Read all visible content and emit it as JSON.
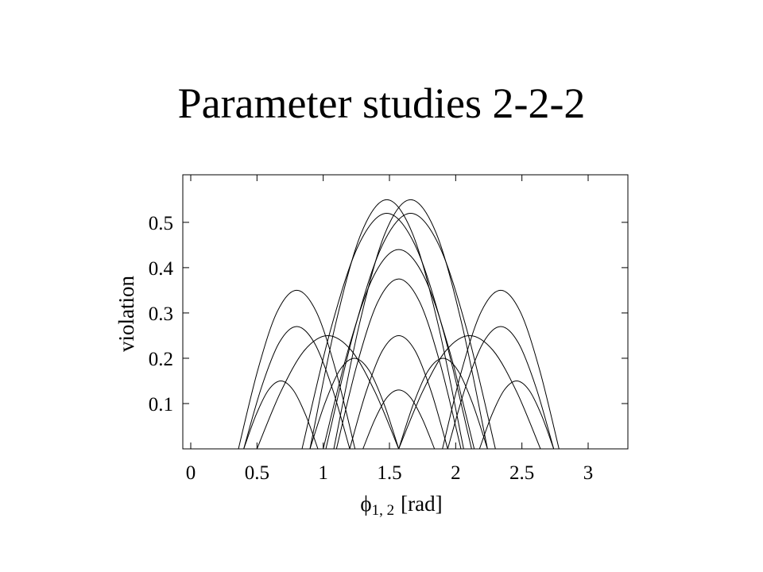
{
  "chart_data": {
    "type": "line",
    "title": "Parameter studies 2-2-2",
    "xlabel": {
      "symbol": "ϕ",
      "subscript": "1, 2",
      "unit": "[rad]"
    },
    "ylabel": "violation",
    "color": "#000000",
    "xlim": [
      -0.06,
      3.3
    ],
    "ylim": [
      0,
      0.605
    ],
    "xticks": [
      0,
      0.5,
      1,
      1.5,
      2,
      2.5,
      3
    ],
    "yticks": [
      0.1,
      0.2,
      0.3,
      0.4,
      0.5
    ],
    "series": [
      {
        "x": [
          0.9,
          1.093,
          1.287,
          1.48,
          1.673,
          1.867,
          2.06
        ],
        "values": [
          0,
          0.275,
          0.476,
          0.55,
          0.476,
          0.275,
          0
        ]
      },
      {
        "x": [
          1.08,
          1.273,
          1.467,
          1.66,
          1.853,
          2.047,
          2.24
        ],
        "values": [
          0,
          0.275,
          0.476,
          0.55,
          0.476,
          0.275,
          0
        ]
      },
      {
        "x": [
          0.84,
          1.053,
          1.267,
          1.48,
          1.693,
          1.907,
          2.12
        ],
        "values": [
          0,
          0.26,
          0.45,
          0.52,
          0.45,
          0.26,
          0
        ]
      },
      {
        "x": [
          1.02,
          1.233,
          1.447,
          1.66,
          1.873,
          2.087,
          2.3
        ],
        "values": [
          0,
          0.26,
          0.45,
          0.52,
          0.45,
          0.26,
          0
        ]
      },
      {
        "x": [
          1.0,
          1.19,
          1.38,
          1.57,
          1.76,
          1.95,
          2.14
        ],
        "values": [
          0,
          0.22,
          0.381,
          0.44,
          0.381,
          0.22,
          0
        ]
      },
      {
        "x": [
          1.1,
          1.257,
          1.413,
          1.57,
          1.727,
          1.883,
          2.04
        ],
        "values": [
          0,
          0.188,
          0.325,
          0.375,
          0.325,
          0.188,
          0
        ]
      },
      {
        "x": [
          1.2,
          1.323,
          1.447,
          1.57,
          1.693,
          1.817,
          1.94
        ],
        "values": [
          0,
          0.125,
          0.217,
          0.25,
          0.217,
          0.125,
          0
        ]
      },
      {
        "x": [
          1.3,
          1.39,
          1.48,
          1.57,
          1.66,
          1.75,
          1.84
        ],
        "values": [
          0,
          0.065,
          0.113,
          0.13,
          0.113,
          0.065,
          0
        ]
      },
      {
        "x": [
          0.36,
          0.507,
          0.653,
          0.8,
          0.947,
          1.093,
          1.24
        ],
        "values": [
          0,
          0.175,
          0.303,
          0.35,
          0.303,
          0.175,
          0
        ]
      },
      {
        "x": [
          1.9,
          2.047,
          2.193,
          2.34,
          2.487,
          2.633,
          2.78
        ],
        "values": [
          0,
          0.175,
          0.303,
          0.35,
          0.303,
          0.175,
          0
        ]
      },
      {
        "x": [
          0.4,
          0.533,
          0.667,
          0.8,
          0.933,
          1.067,
          1.2
        ],
        "values": [
          0,
          0.135,
          0.234,
          0.27,
          0.234,
          0.135,
          0
        ]
      },
      {
        "x": [
          1.94,
          2.073,
          2.207,
          2.34,
          2.473,
          2.607,
          2.74
        ],
        "values": [
          0,
          0.135,
          0.234,
          0.27,
          0.234,
          0.135,
          0
        ]
      },
      {
        "x": [
          0.5,
          0.678,
          0.857,
          1.035,
          1.213,
          1.392,
          1.57
        ],
        "values": [
          0,
          0.125,
          0.217,
          0.25,
          0.217,
          0.125,
          0
        ]
      },
      {
        "x": [
          1.57,
          1.748,
          1.927,
          2.105,
          2.283,
          2.462,
          2.64
        ],
        "values": [
          0,
          0.125,
          0.217,
          0.25,
          0.217,
          0.125,
          0
        ]
      },
      {
        "x": [
          0.4,
          0.493,
          0.587,
          0.68,
          0.773,
          0.867,
          0.96
        ],
        "values": [
          0,
          0.075,
          0.13,
          0.15,
          0.13,
          0.075,
          0
        ]
      },
      {
        "x": [
          2.18,
          2.273,
          2.367,
          2.46,
          2.553,
          2.647,
          2.74
        ],
        "values": [
          0,
          0.075,
          0.13,
          0.15,
          0.13,
          0.075,
          0
        ]
      },
      {
        "x": [
          0.9,
          1.012,
          1.123,
          1.235,
          1.347,
          1.458,
          1.57
        ],
        "values": [
          0,
          0.1,
          0.173,
          0.2,
          0.173,
          0.1,
          0
        ]
      },
      {
        "x": [
          1.57,
          1.682,
          1.793,
          1.905,
          2.017,
          2.128,
          2.24
        ],
        "values": [
          0,
          0.1,
          0.173,
          0.2,
          0.173,
          0.1,
          0
        ]
      }
    ]
  }
}
